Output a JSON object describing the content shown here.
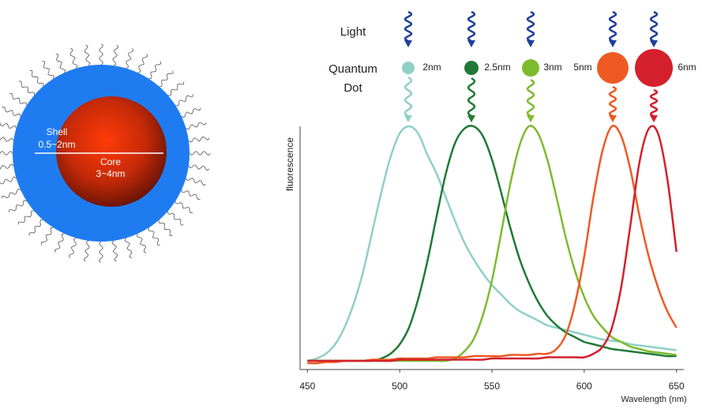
{
  "diagram": {
    "shell_label": "Shell",
    "shell_size": "0.5~2nm",
    "core_label": "Core",
    "core_size": "3~4nm",
    "light_label": "Light",
    "dot_label_1": "Quantum",
    "dot_label_2": "Dot",
    "dot_sizes": [
      "2nm",
      "2.5nm",
      "3nm",
      "5nm",
      "6nm"
    ]
  },
  "chart_data": {
    "type": "line",
    "ylabel": "fluorescence",
    "xlabel": "Wavelength (nm)",
    "xlim": [
      446,
      654
    ],
    "ylim": [
      0,
      1
    ],
    "xticks": [
      450,
      500,
      550,
      600,
      650
    ],
    "x": [
      450,
      455,
      460,
      465,
      470,
      475,
      480,
      485,
      490,
      495,
      500,
      505,
      510,
      515,
      520,
      525,
      530,
      535,
      540,
      545,
      550,
      555,
      560,
      565,
      570,
      575,
      580,
      585,
      590,
      595,
      600,
      605,
      610,
      615,
      620,
      625,
      630,
      635,
      640,
      645,
      650
    ],
    "series": [
      {
        "name": "2nm",
        "color": "#8fd0c6",
        "values": [
          0.01,
          0.02,
          0.04,
          0.08,
          0.15,
          0.25,
          0.38,
          0.55,
          0.72,
          0.87,
          0.97,
          1.0,
          0.97,
          0.88,
          0.8,
          0.7,
          0.6,
          0.51,
          0.44,
          0.38,
          0.33,
          0.29,
          0.25,
          0.22,
          0.2,
          0.18,
          0.16,
          0.15,
          0.14,
          0.13,
          0.12,
          0.11,
          0.1,
          0.095,
          0.09,
          0.08,
          0.075,
          0.07,
          0.065,
          0.06,
          0.055
        ]
      },
      {
        "name": "2.5nm",
        "color": "#1f7a35",
        "values": [
          0.01,
          0.01,
          0.01,
          0.01,
          0.01,
          0.01,
          0.01,
          0.01,
          0.02,
          0.04,
          0.08,
          0.15,
          0.27,
          0.43,
          0.62,
          0.8,
          0.93,
          0.99,
          1.0,
          0.96,
          0.86,
          0.72,
          0.57,
          0.44,
          0.34,
          0.26,
          0.2,
          0.16,
          0.13,
          0.11,
          0.09,
          0.08,
          0.07,
          0.06,
          0.055,
          0.05,
          0.045,
          0.04,
          0.035,
          0.03,
          0.03
        ]
      },
      {
        "name": "3nm",
        "color": "#7dbb2e",
        "values": [
          0.01,
          0.01,
          0.01,
          0.01,
          0.01,
          0.01,
          0.01,
          0.01,
          0.01,
          0.01,
          0.01,
          0.01,
          0.01,
          0.01,
          0.01,
          0.01,
          0.02,
          0.05,
          0.1,
          0.2,
          0.35,
          0.55,
          0.76,
          0.92,
          1.0,
          0.97,
          0.86,
          0.7,
          0.53,
          0.39,
          0.28,
          0.2,
          0.15,
          0.11,
          0.09,
          0.07,
          0.06,
          0.05,
          0.045,
          0.04,
          0.035
        ]
      },
      {
        "name": "5nm",
        "color": "#ee5a24",
        "values": [
          0.0,
          0.0,
          0.005,
          0.005,
          0.01,
          0.01,
          0.01,
          0.015,
          0.015,
          0.015,
          0.02,
          0.02,
          0.02,
          0.02,
          0.025,
          0.025,
          0.025,
          0.025,
          0.03,
          0.03,
          0.03,
          0.03,
          0.035,
          0.035,
          0.035,
          0.04,
          0.04,
          0.06,
          0.12,
          0.25,
          0.45,
          0.7,
          0.9,
          1.0,
          0.96,
          0.82,
          0.62,
          0.45,
          0.32,
          0.22,
          0.15
        ]
      },
      {
        "name": "6nm",
        "color": "#d4202c",
        "values": [
          0.01,
          0.01,
          0.01,
          0.01,
          0.01,
          0.01,
          0.01,
          0.01,
          0.01,
          0.01,
          0.015,
          0.015,
          0.015,
          0.015,
          0.015,
          0.015,
          0.015,
          0.015,
          0.015,
          0.015,
          0.02,
          0.02,
          0.02,
          0.02,
          0.02,
          0.02,
          0.025,
          0.025,
          0.025,
          0.025,
          0.025,
          0.04,
          0.07,
          0.15,
          0.32,
          0.58,
          0.85,
          0.99,
          0.97,
          0.78,
          0.47
        ]
      }
    ]
  }
}
